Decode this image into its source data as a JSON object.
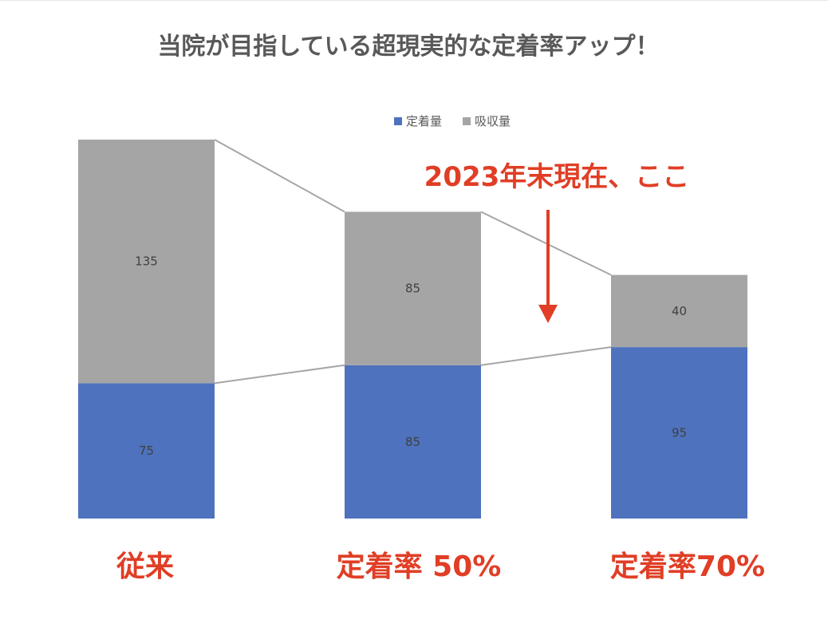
{
  "chart_data": {
    "type": "bar",
    "stacked": true,
    "title": "当院が目指している超現実的な定着率アップ！",
    "categories": [
      "従来",
      "定着率 50%",
      "定着率70%"
    ],
    "series": [
      {
        "name": "定着量",
        "values": [
          75,
          85,
          95
        ],
        "color": "#4e72bd"
      },
      {
        "name": "吸収量",
        "values": [
          135,
          85,
          40
        ],
        "color": "#a5a5a5"
      }
    ],
    "legend_position": "top",
    "axes_visible": false,
    "grid": false,
    "ylim": [
      0,
      210
    ],
    "annotation": {
      "text": "2023年末現在、ここ",
      "points_to": "定着率 50% → 定着率70%",
      "color": "#e03e25"
    },
    "series_lines_color": "#a6a6a6"
  }
}
